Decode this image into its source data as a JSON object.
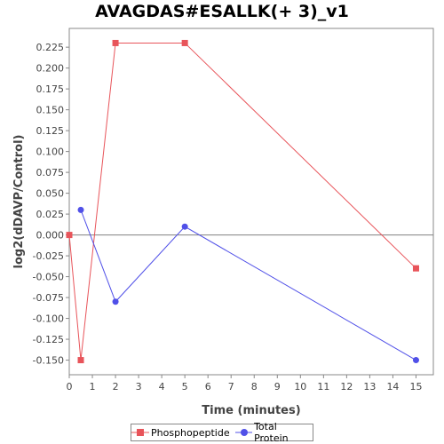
{
  "chart_data": {
    "type": "line",
    "title": "AVAGDAS#ESALLK(+ 3)_v1",
    "xlabel": "Time (minutes)",
    "ylabel": "log2(dDAVP/Control)",
    "xlim": [
      0,
      15.75
    ],
    "ylim": [
      -0.1675,
      0.2475
    ],
    "x_ticks": [
      0,
      1,
      2,
      3,
      4,
      5,
      6,
      7,
      8,
      9,
      10,
      11,
      12,
      13,
      14,
      15
    ],
    "y_ticks": [
      -0.15,
      -0.125,
      -0.1,
      -0.075,
      -0.05,
      -0.025,
      0.0,
      0.025,
      0.05,
      0.075,
      0.1,
      0.125,
      0.15,
      0.175,
      0.2,
      0.225
    ],
    "y_tick_format": 3,
    "reference_line_y": 0,
    "legend_position": "bottom",
    "grid": false,
    "series": [
      {
        "name": "Phosphopeptide",
        "color": "#e8545a",
        "marker": "square",
        "x": [
          0,
          0.5,
          2,
          5,
          15
        ],
        "y": [
          0.0,
          -0.15,
          0.23,
          0.23,
          -0.04
        ]
      },
      {
        "name": "Total Protein",
        "color": "#5050e8",
        "marker": "circle",
        "x": [
          0.5,
          2,
          5,
          15
        ],
        "y": [
          0.03,
          -0.08,
          0.01,
          -0.15
        ]
      }
    ]
  }
}
